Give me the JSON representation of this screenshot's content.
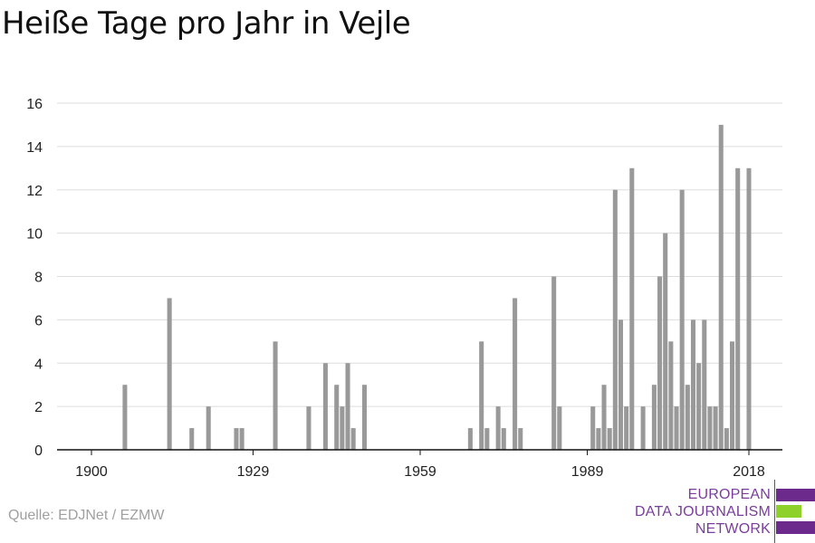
{
  "title": "Heiße Tage pro Jahr in Vejle",
  "source": "Quelle: EDJNet / EZMW",
  "logo": {
    "lines": [
      "EUROPEAN",
      "DATA JOURNALISM",
      "NETWORK"
    ],
    "colors": {
      "purple": "#6b2a8c",
      "green": "#8ed12b"
    }
  },
  "chart_data": {
    "type": "bar",
    "title": "Heiße Tage pro Jahr in Vejle",
    "xlabel": "",
    "ylabel": "",
    "ylim": [
      0,
      16
    ],
    "y_ticks": [
      0,
      2,
      4,
      6,
      8,
      10,
      12,
      14,
      16
    ],
    "x_ticks": [
      1900,
      1929,
      1959,
      1989,
      2018
    ],
    "xlim": [
      1900,
      2018
    ],
    "grid": true,
    "bar_color": "#999999",
    "x": [
      1906,
      1914,
      1918,
      1921,
      1926,
      1927,
      1933,
      1939,
      1942,
      1944,
      1945,
      1946,
      1947,
      1949,
      1968,
      1970,
      1971,
      1973,
      1974,
      1976,
      1977,
      1983,
      1984,
      1990,
      1991,
      1992,
      1993,
      1994,
      1995,
      1996,
      1997,
      1999,
      2001,
      2002,
      2003,
      2004,
      2005,
      2006,
      2007,
      2008,
      2009,
      2010,
      2011,
      2012,
      2013,
      2014,
      2015,
      2016,
      2018
    ],
    "values": [
      3,
      7,
      1,
      2,
      1,
      1,
      5,
      2,
      4,
      3,
      2,
      4,
      1,
      3,
      1,
      5,
      1,
      2,
      1,
      7,
      1,
      8,
      2,
      2,
      1,
      3,
      1,
      12,
      6,
      2,
      13,
      2,
      3,
      8,
      10,
      5,
      2,
      12,
      3,
      6,
      4,
      6,
      2,
      2,
      15,
      1,
      5,
      13,
      13
    ]
  }
}
